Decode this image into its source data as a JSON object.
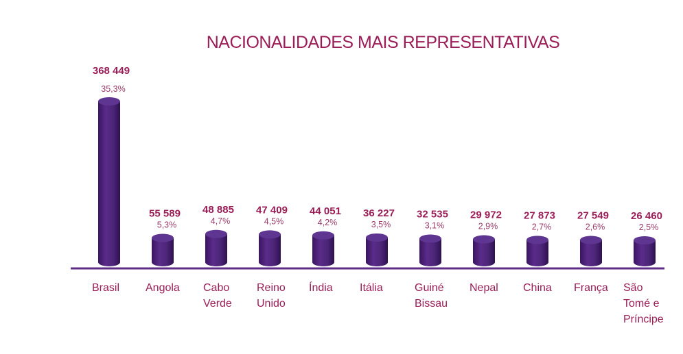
{
  "chart_data": {
    "type": "bar",
    "title": "NACIONALIDADES MAIS REPRESENTATIVAS",
    "categories": [
      [
        "Brasil"
      ],
      [
        "Angola"
      ],
      [
        "Cabo",
        "Verde"
      ],
      [
        "Reino",
        "Unido"
      ],
      [
        "Índia"
      ],
      [
        "Itália"
      ],
      [
        "Guiné",
        "Bissau"
      ],
      [
        "Nepal"
      ],
      [
        "China"
      ],
      [
        "França"
      ],
      [
        "São",
        "Tomé e",
        "Príncipe"
      ]
    ],
    "values": [
      368449,
      55589,
      48885,
      47409,
      44051,
      36227,
      32535,
      29972,
      27873,
      27549,
      26460
    ],
    "value_labels": [
      "368 449",
      "55 589",
      "48 885",
      "47 409",
      "44 051",
      "36 227",
      "32 535",
      "29 972",
      "27 873",
      "27 549",
      "26 460"
    ],
    "percent_labels": [
      "35,3%",
      "5,3%",
      "4,7%",
      "4,5%",
      "4,2%",
      "3,5%",
      "3,1%",
      "2,9%",
      "2,7%",
      "2,6%",
      "2,5%"
    ],
    "colors": {
      "bar": "#4b2576",
      "bar_dark": "#34134f",
      "bar_top": "#5e3590",
      "axis": "#5e2b86",
      "text": "#9a1d57"
    }
  }
}
